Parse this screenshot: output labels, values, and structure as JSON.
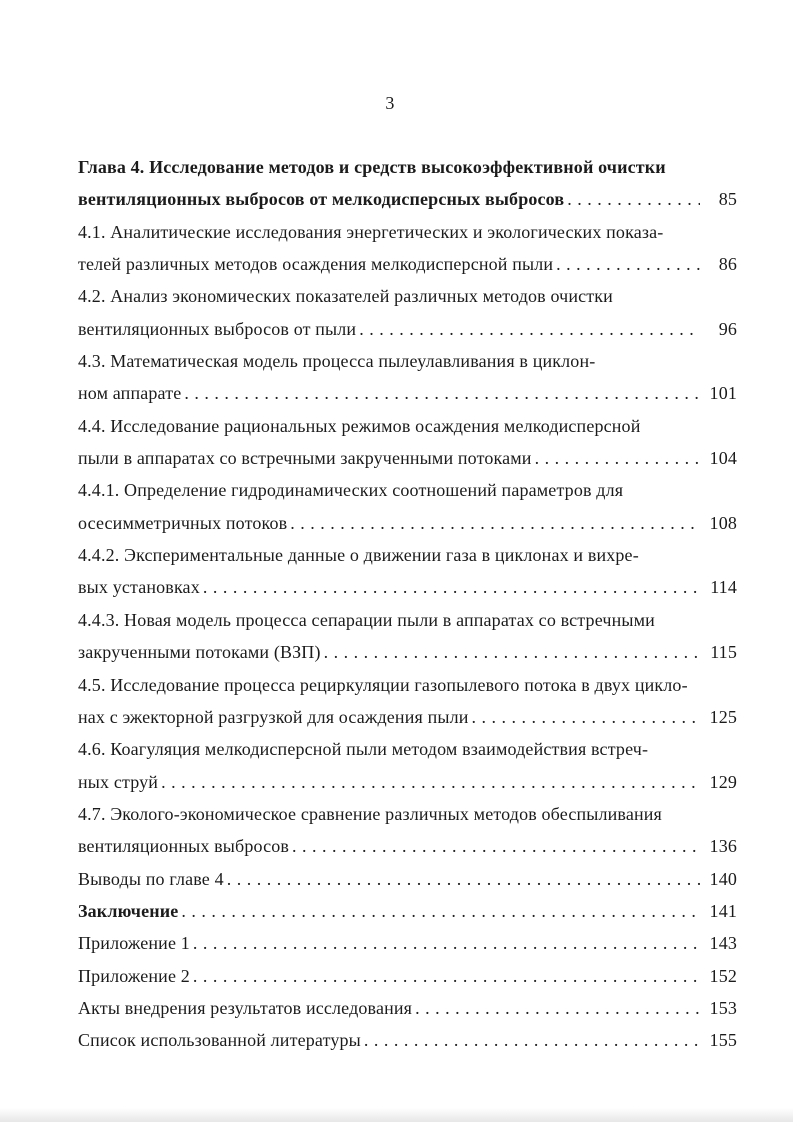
{
  "colors": {
    "paper": "#ffffff",
    "ink": "#1b1b1b"
  },
  "page": {
    "number": "3"
  },
  "toc": {
    "entries": [
      {
        "text": "Глава 4. Исследование методов и средств высокоэффективной очистки"
      },
      {
        "text": "вентиляционных выбросов от мелкодисперсных выбросов",
        "page": "85"
      },
      {
        "text": "4.1. Аналитические исследования энергетических и экологических показа-"
      },
      {
        "text": "телей различных методов осаждения мелкодисперсной пыли",
        "page": "86"
      },
      {
        "text": "4.2. Анализ экономических показателей различных методов очистки"
      },
      {
        "text": "вентиляционных выбросов от пыли",
        "page": "96"
      },
      {
        "text": "4.3. Математическая модель процесса пылеулавливания в циклон-"
      },
      {
        "text": "ном аппарате",
        "page": "101"
      },
      {
        "text": "4.4. Исследование рациональных режимов осаждения мелкодисперсной"
      },
      {
        "text": "пыли в аппаратах со встречными закрученными потоками",
        "page": "104"
      },
      {
        "text": "4.4.1. Определение гидродинамических соотношений параметров для"
      },
      {
        "text": "осесимметричных потоков",
        "page": "108"
      },
      {
        "text": "4.4.2. Экспериментальные данные о движении газа в циклонах и вихре-"
      },
      {
        "text": "вых установках",
        "page": "114"
      },
      {
        "text": "4.4.3. Новая модель процесса сепарации пыли в аппаратах со встречными"
      },
      {
        "text": "закрученными потоками (ВЗП)",
        "page": "115"
      },
      {
        "text": "4.5. Исследование процесса рециркуляции газопылевого потока в двух цикло-"
      },
      {
        "text": "нах с эжекторной разгрузкой для осаждения пыли",
        "page": "125"
      },
      {
        "text": "4.6. Коагуляция мелкодисперсной пыли методом взаимодействия встреч-"
      },
      {
        "text": "ных струй",
        "page": "129"
      },
      {
        "text": "4.7. Эколого-экономическое сравнение различных методов обеспыливания"
      },
      {
        "text": "вентиляционных выбросов",
        "page": "136"
      },
      {
        "text": "Выводы по главе 4",
        "page": "140"
      },
      {
        "text": "Заключение",
        "page": "141"
      },
      {
        "text": "Приложение 1",
        "page": "143"
      },
      {
        "text": "Приложение 2",
        "page": "152"
      },
      {
        "text": "Акты внедрения результатов исследования",
        "page": "153"
      },
      {
        "text": "Список использованной литературы",
        "page": "155"
      }
    ]
  }
}
